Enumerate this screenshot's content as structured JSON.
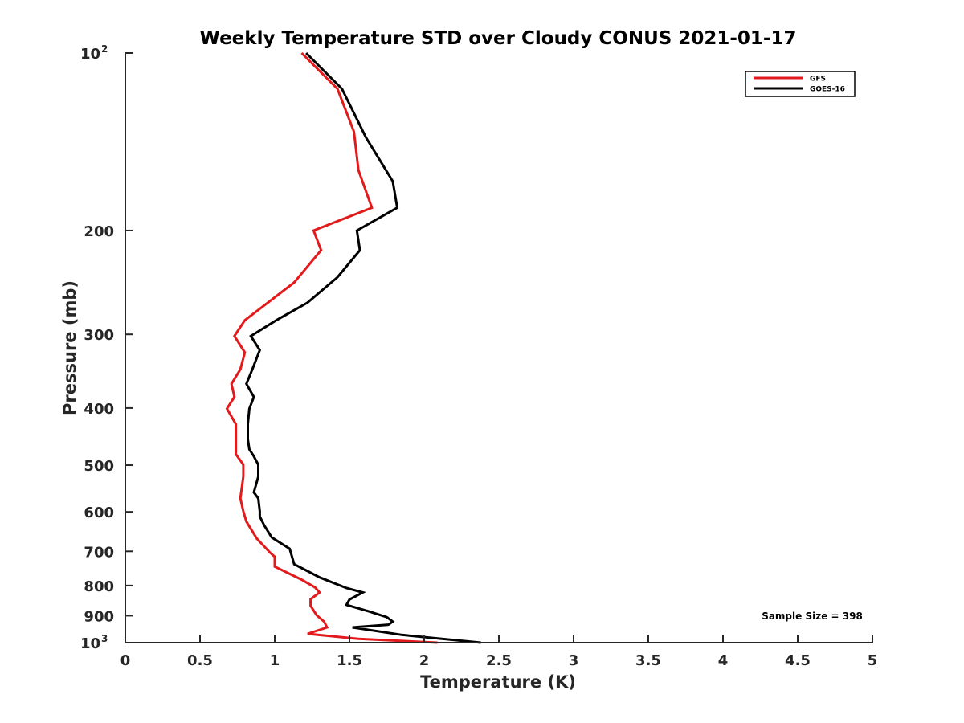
{
  "chart_data": {
    "type": "line",
    "title": "Weekly Temperature STD over Cloudy CONUS 2021-01-17",
    "xlabel": "Temperature (K)",
    "ylabel": "Pressure (mb)",
    "xlim": [
      0,
      5
    ],
    "ylim": [
      100,
      1000
    ],
    "y_scale": "log",
    "y_reversed": true,
    "grid": false,
    "legend_position": "top-right",
    "x_ticks": [
      "0",
      "0.5",
      "1",
      "1.5",
      "2",
      "2.5",
      "3",
      "3.5",
      "4",
      "4.5",
      "5"
    ],
    "y_ticks": [
      {
        "value": 100,
        "base": "10",
        "exp": "2"
      },
      {
        "value": 200,
        "label": "200"
      },
      {
        "value": 300,
        "label": "300"
      },
      {
        "value": 400,
        "label": "400"
      },
      {
        "value": 500,
        "label": "500"
      },
      {
        "value": 600,
        "label": "600"
      },
      {
        "value": 700,
        "label": "700"
      },
      {
        "value": 800,
        "label": "800"
      },
      {
        "value": 900,
        "label": "900"
      },
      {
        "value": 1000,
        "base": "10",
        "exp": "3"
      }
    ],
    "series": [
      {
        "name": "GFS",
        "color": "#e31a1c",
        "points": [
          [
            1.18,
            100
          ],
          [
            1.42,
            115
          ],
          [
            1.53,
            136
          ],
          [
            1.56,
            158
          ],
          [
            1.65,
            183
          ],
          [
            1.26,
            200
          ],
          [
            1.31,
            216
          ],
          [
            1.13,
            245
          ],
          [
            0.8,
            284
          ],
          [
            0.73,
            302
          ],
          [
            0.8,
            322
          ],
          [
            0.77,
            344
          ],
          [
            0.71,
            364
          ],
          [
            0.73,
            383
          ],
          [
            0.68,
            401
          ],
          [
            0.74,
            426
          ],
          [
            0.74,
            452
          ],
          [
            0.74,
            479
          ],
          [
            0.79,
            499
          ],
          [
            0.79,
            523
          ],
          [
            0.77,
            569
          ],
          [
            0.79,
            599
          ],
          [
            0.81,
            623
          ],
          [
            0.88,
            666
          ],
          [
            0.97,
            704
          ],
          [
            1.0,
            715
          ],
          [
            1.0,
            743
          ],
          [
            1.18,
            782
          ],
          [
            1.27,
            806
          ],
          [
            1.3,
            822
          ],
          [
            1.24,
            844
          ],
          [
            1.24,
            866
          ],
          [
            1.28,
            898
          ],
          [
            1.33,
            921
          ],
          [
            1.35,
            942
          ],
          [
            1.22,
            966
          ],
          [
            1.56,
            985
          ],
          [
            2.09,
            1000
          ]
        ]
      },
      {
        "name": "GOES-16",
        "color": "#000000",
        "points": [
          [
            1.21,
            100
          ],
          [
            1.45,
            115
          ],
          [
            1.61,
            139
          ],
          [
            1.79,
            165
          ],
          [
            1.82,
            183
          ],
          [
            1.55,
            200
          ],
          [
            1.57,
            216
          ],
          [
            1.42,
            240
          ],
          [
            1.22,
            265
          ],
          [
            1.01,
            284
          ],
          [
            0.84,
            302
          ],
          [
            0.9,
            319
          ],
          [
            0.85,
            344
          ],
          [
            0.81,
            364
          ],
          [
            0.86,
            383
          ],
          [
            0.83,
            401
          ],
          [
            0.82,
            426
          ],
          [
            0.82,
            452
          ],
          [
            0.83,
            470
          ],
          [
            0.86,
            483
          ],
          [
            0.89,
            499
          ],
          [
            0.89,
            523
          ],
          [
            0.86,
            556
          ],
          [
            0.89,
            569
          ],
          [
            0.9,
            599
          ],
          [
            0.9,
            611
          ],
          [
            0.93,
            633
          ],
          [
            0.98,
            663
          ],
          [
            1.1,
            693
          ],
          [
            1.13,
            736
          ],
          [
            1.3,
            775
          ],
          [
            1.48,
            808
          ],
          [
            1.59,
            822
          ],
          [
            1.5,
            845
          ],
          [
            1.48,
            863
          ],
          [
            1.63,
            885
          ],
          [
            1.75,
            905
          ],
          [
            1.79,
            921
          ],
          [
            1.76,
            932
          ],
          [
            1.52,
            942
          ],
          [
            1.85,
            970
          ],
          [
            2.38,
            1000
          ]
        ]
      }
    ],
    "annotation": "Sample Size = 398"
  }
}
